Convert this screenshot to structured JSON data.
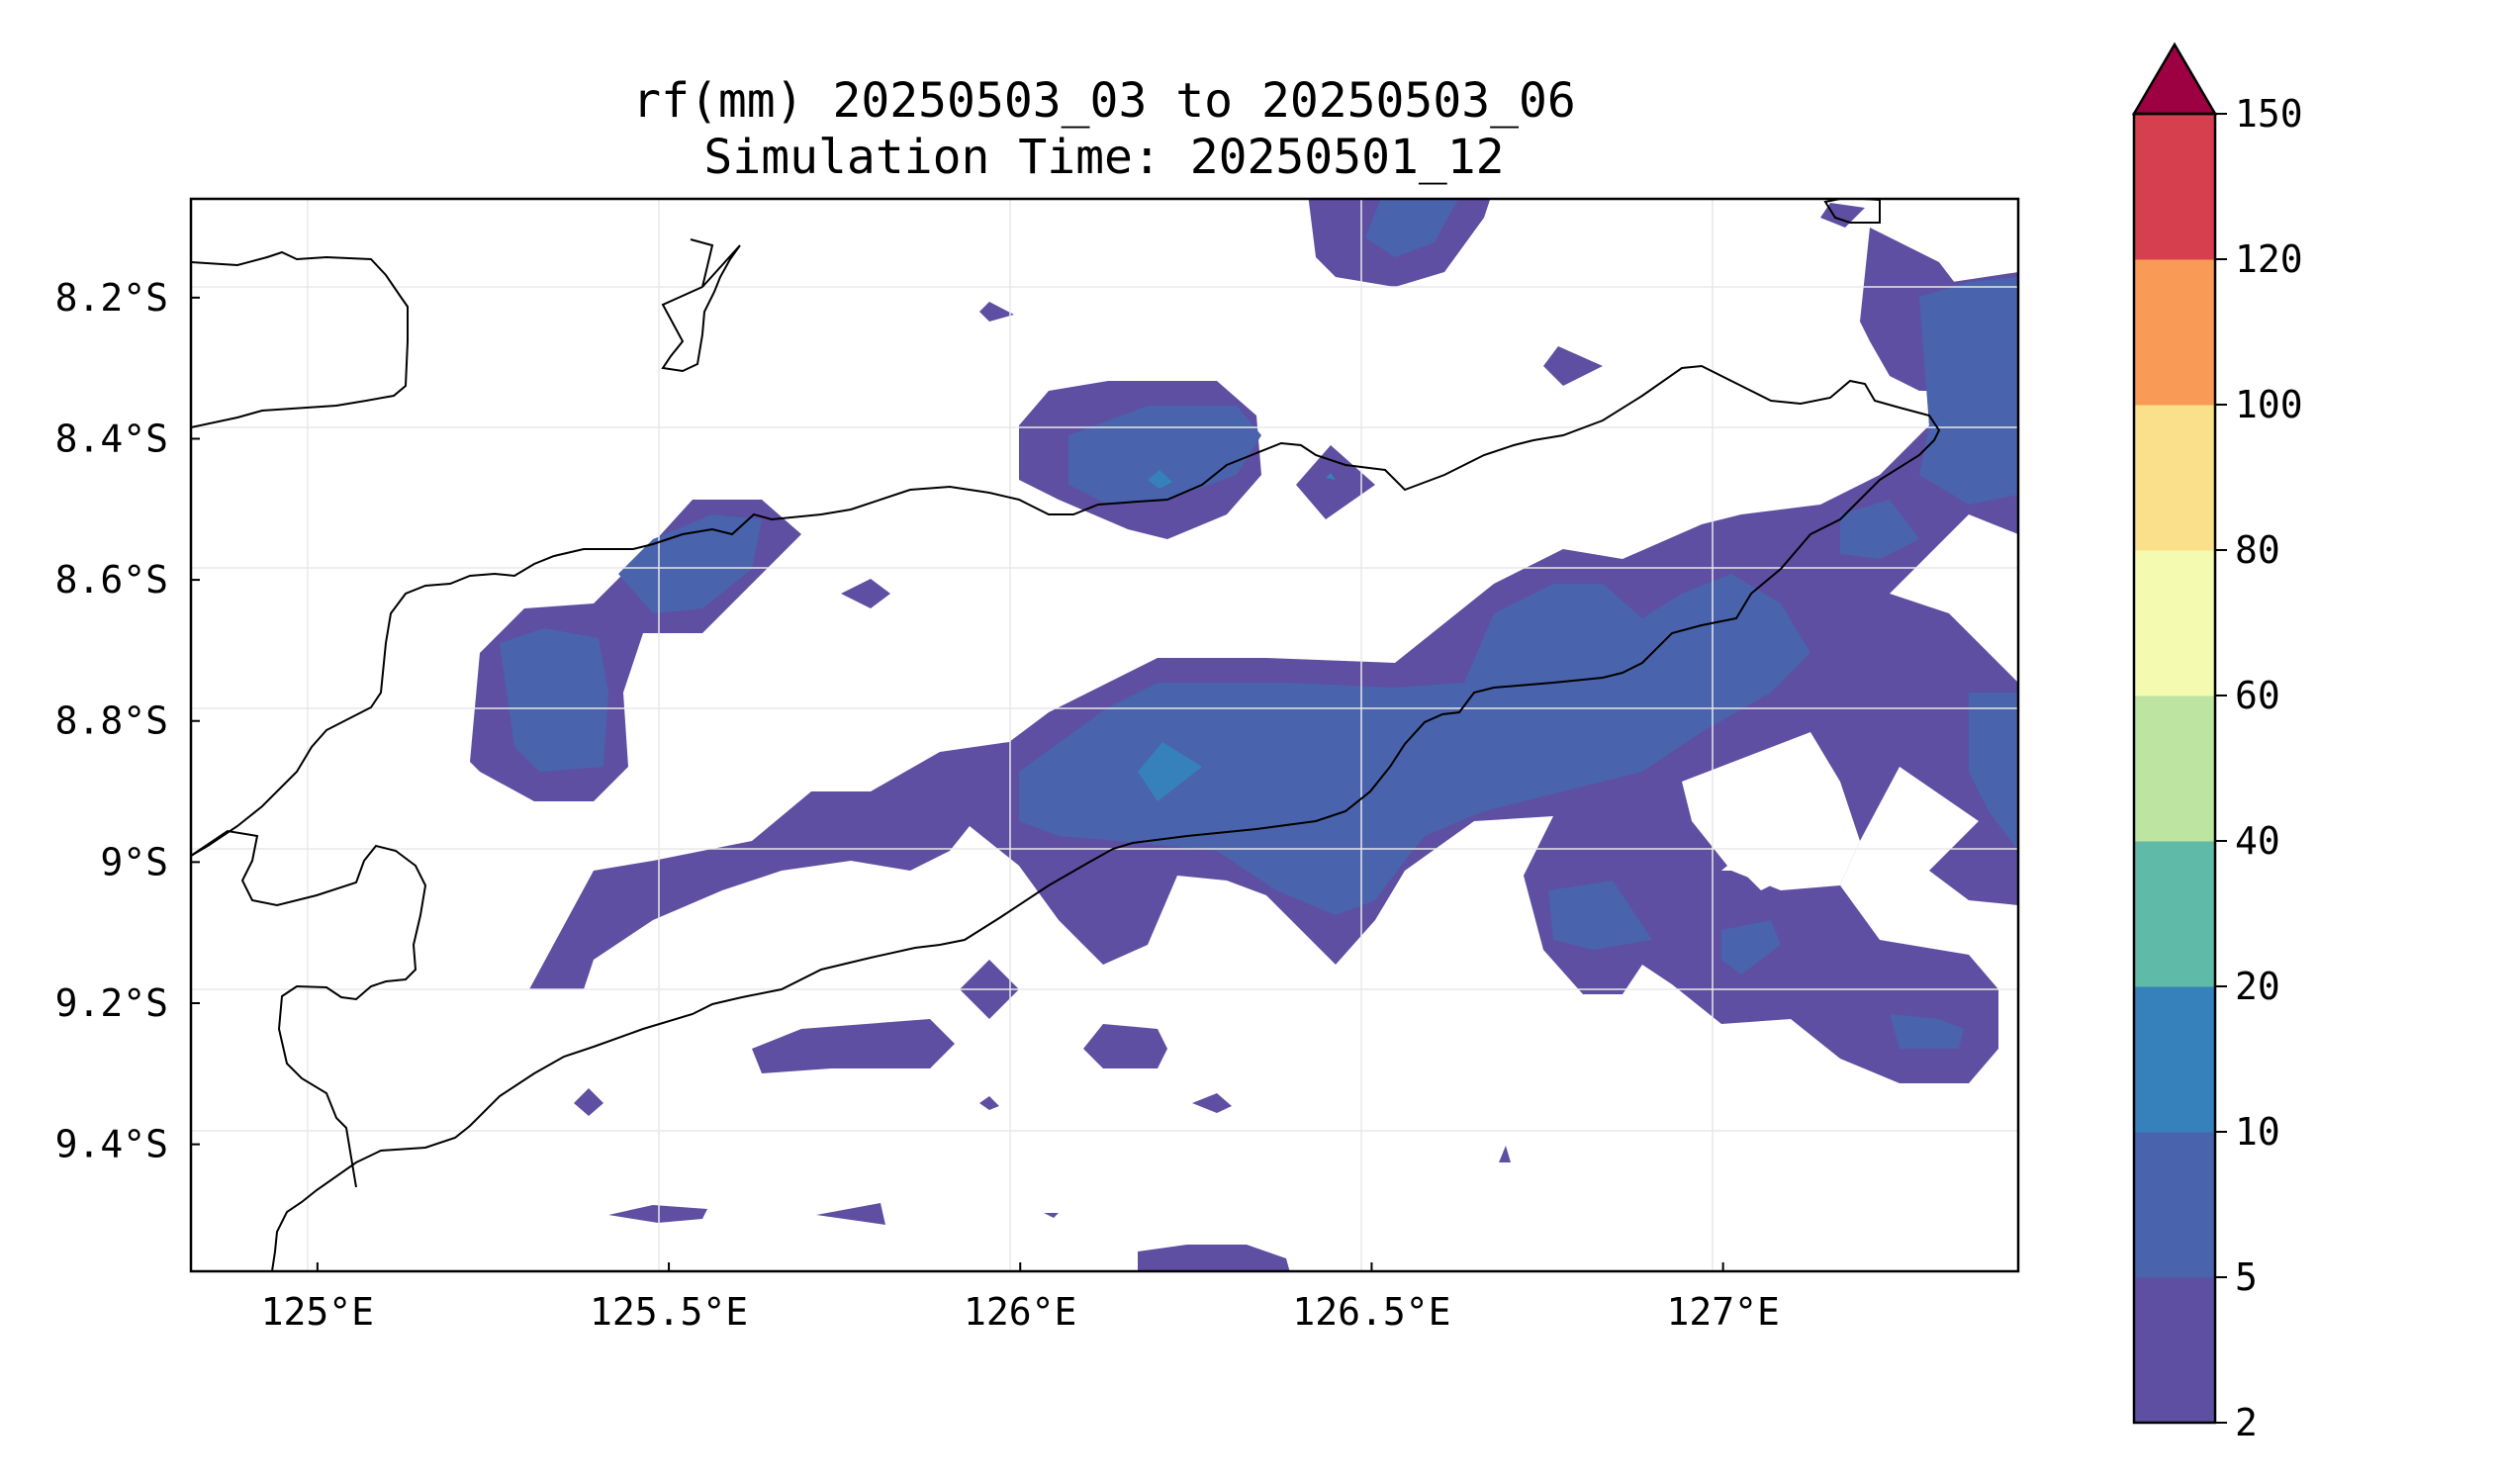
{
  "title": {
    "line1": "rf(mm) 20250503_03 to 20250503_06",
    "line2": "Simulation Time: 20250501_12"
  },
  "map": {
    "lon_range": [
      124.82,
      127.42
    ],
    "lat_range": [
      -9.58,
      -8.06
    ],
    "x_ticks": [
      {
        "value": 125.0,
        "label": "125°E"
      },
      {
        "value": 125.5,
        "label": "125.5°E"
      },
      {
        "value": 126.0,
        "label": "126°E"
      },
      {
        "value": 126.5,
        "label": "126.5°E"
      },
      {
        "value": 127.0,
        "label": "127°E"
      }
    ],
    "y_ticks": [
      {
        "value": -8.2,
        "label": "8.2°S"
      },
      {
        "value": -8.4,
        "label": "8.4°S"
      },
      {
        "value": -8.6,
        "label": "8.6°S"
      },
      {
        "value": -8.8,
        "label": "8.8°S"
      },
      {
        "value": -9.0,
        "label": "9°S"
      },
      {
        "value": -9.2,
        "label": "9.2°S"
      },
      {
        "value": -9.4,
        "label": "9.4°S"
      }
    ],
    "gridlines": true,
    "coastline_color": "#000000"
  },
  "colorbar": {
    "levels": [
      "2",
      "5",
      "10",
      "20",
      "40",
      "60",
      "80",
      "100",
      "120",
      "150"
    ],
    "colors": [
      "#5e4fa2",
      "#4a63ad",
      "#3681bb",
      "#5fbaa7",
      "#bde4a0",
      "#f4fab0",
      "#fbe08c",
      "#f99b56",
      "#d6404e"
    ],
    "extend_color": "#9e0142",
    "extend": "max"
  }
}
